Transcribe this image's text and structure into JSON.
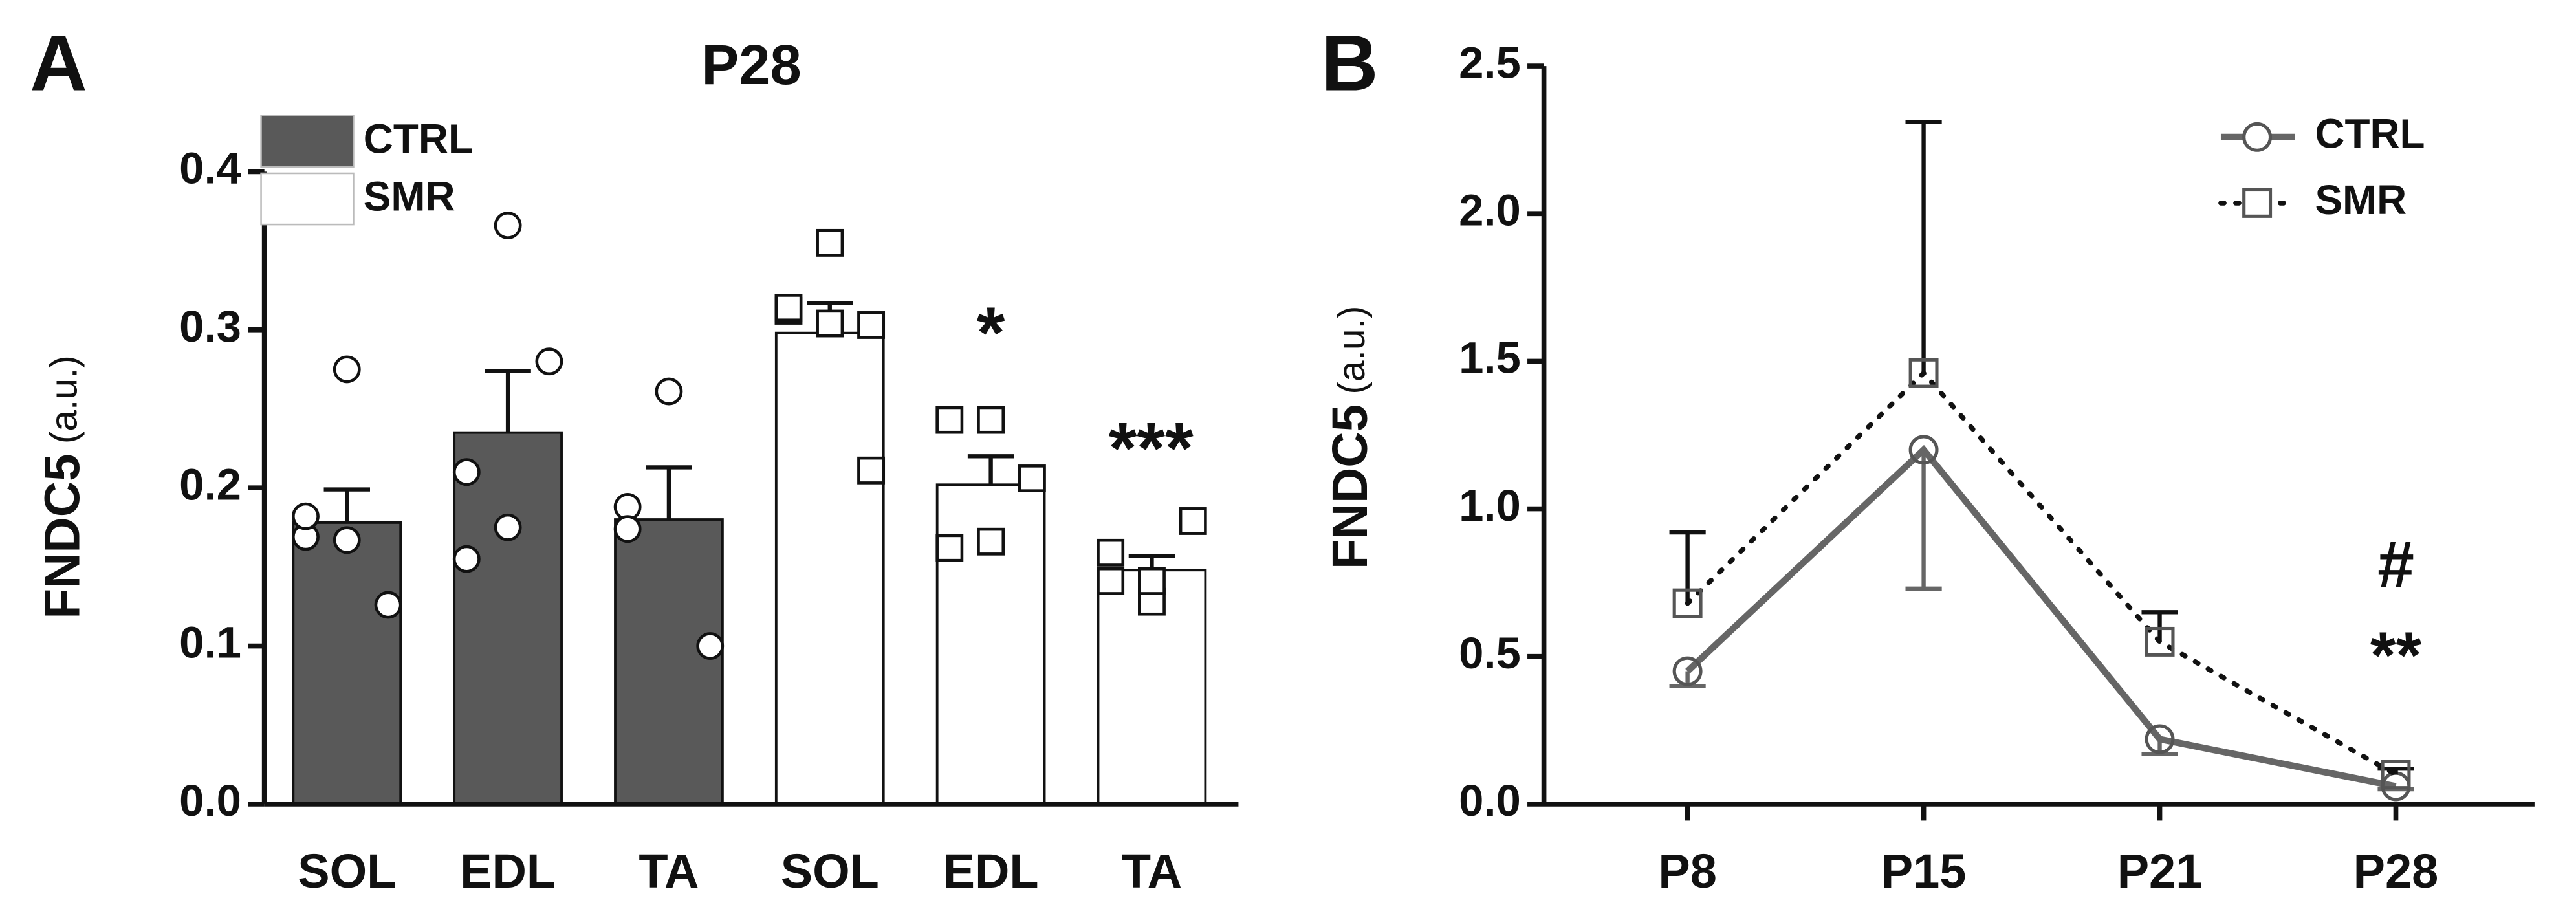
{
  "chart_data": [
    {
      "type": "bar",
      "panel": "A",
      "title": "P28",
      "ylabel": "FNDC5",
      "ylabel_unit": "(a.u.)",
      "categories": [
        "SOL",
        "EDL",
        "TA",
        "SOL",
        "EDL",
        "TA"
      ],
      "values": [
        0.178,
        0.235,
        0.18,
        0.298,
        0.202,
        0.148
      ],
      "errors": [
        0.021,
        0.039,
        0.033,
        0.019,
        0.018,
        0.009
      ],
      "colors": [
        "#595959",
        "#595959",
        "#595959",
        "#ffffff",
        "#ffffff",
        "#ffffff"
      ],
      "points": [
        [
          0.169,
          0.275,
          0.126,
          0.182,
          0.167
        ],
        [
          0.155,
          0.366,
          0.28,
          0.21,
          0.175
        ],
        [
          0.188,
          0.261,
          0.1,
          0.174
        ],
        [
          0.312,
          0.355,
          0.211,
          0.314,
          0.304,
          0.303
        ],
        [
          0.162,
          0.243,
          0.206,
          0.243,
          0.166
        ],
        [
          0.141,
          0.128,
          0.179,
          0.159,
          0.141
        ]
      ],
      "point_markers": [
        "circle",
        "circle",
        "circle",
        "square",
        "square",
        "square"
      ],
      "legend": [
        {
          "name": "CTRL",
          "color": "#595959"
        },
        {
          "name": "SMR",
          "color": "#ffffff"
        }
      ],
      "annotations": [
        "*",
        "***"
      ],
      "ylim": [
        0,
        0.4
      ],
      "yticks": [
        {
          "value": 0,
          "label": "0.0"
        },
        {
          "value": 0.1,
          "label": "0.1"
        },
        {
          "value": 0.2,
          "label": "0.2"
        },
        {
          "value": 0.3,
          "label": "0.3"
        },
        {
          "value": 0.4,
          "label": "0.4"
        }
      ]
    },
    {
      "type": "line",
      "panel": "B",
      "ylabel": "FNDC5",
      "ylabel_unit": "(a.u.)",
      "categories": [
        "P8",
        "P15",
        "P21",
        "P28"
      ],
      "series": [
        {
          "name": "CTRL",
          "color": "#666666",
          "dash": "solid",
          "marker": "circle",
          "error_direction": "down",
          "values": [
            0.45,
            1.2,
            0.22,
            0.06
          ],
          "errors": [
            0.05,
            0.47,
            0.05,
            0.01
          ]
        },
        {
          "name": "SMR",
          "color": "#111111",
          "dash": "dotted",
          "marker": "square",
          "error_direction": "up",
          "values": [
            0.68,
            1.46,
            0.55,
            0.1
          ],
          "errors": [
            0.24,
            0.85,
            0.1,
            0.02
          ]
        }
      ],
      "annotations": [
        "#",
        "**"
      ],
      "ylim": [
        0,
        2.5
      ],
      "yticks": [
        {
          "value": 0,
          "label": "0.0"
        },
        {
          "value": 0.5,
          "label": "0.5"
        },
        {
          "value": 1,
          "label": "1.0"
        },
        {
          "value": 1.5,
          "label": "1.5"
        },
        {
          "value": 2,
          "label": "2.0"
        },
        {
          "value": 2.5,
          "label": "2.5"
        }
      ]
    }
  ]
}
